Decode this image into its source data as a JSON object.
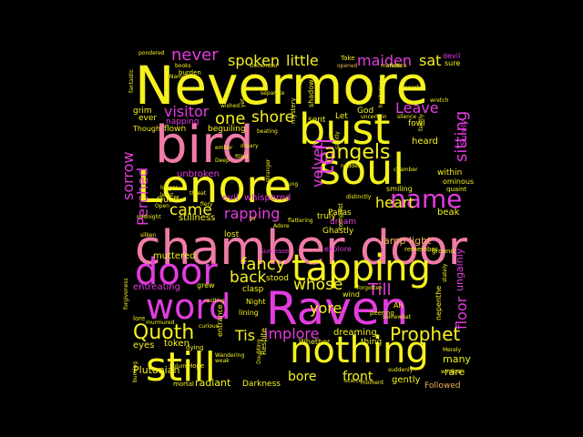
{
  "colors": {
    "background": "#000000",
    "yellow": "#f5f21e",
    "pink": "#f07ba8",
    "magenta": "#e43ce0",
    "orange": "#f4b255",
    "light": "#f8c878"
  },
  "words": [
    {
      "text": "Nevermore",
      "color": "yellow",
      "weight": 1.0
    },
    {
      "text": "bird",
      "color": "pink",
      "weight": 0.84
    },
    {
      "text": "bust",
      "color": "yellow",
      "weight": 0.76
    },
    {
      "text": "Lenore",
      "color": "yellow",
      "weight": 0.74
    },
    {
      "text": "soul",
      "color": "yellow",
      "weight": 0.66
    },
    {
      "text": "chamber door",
      "color": "pink",
      "weight": 0.8
    },
    {
      "text": "tapping",
      "color": "yellow",
      "weight": 0.64
    },
    {
      "text": "door",
      "color": "magenta",
      "weight": 0.62
    },
    {
      "text": "word",
      "color": "magenta",
      "weight": 0.6
    },
    {
      "text": "Raven",
      "color": "magenta",
      "weight": 0.9
    },
    {
      "text": "nothing",
      "color": "yellow",
      "weight": 0.62
    },
    {
      "text": "still",
      "color": "yellow",
      "weight": 0.62
    },
    {
      "text": "name",
      "color": "magenta",
      "weight": 0.5
    },
    {
      "text": "tell",
      "color": "magenta",
      "weight": 0.48
    },
    {
      "text": "angels",
      "color": "yellow",
      "weight": 0.36
    },
    {
      "text": "Quoth",
      "color": "yellow",
      "weight": 0.34
    },
    {
      "text": "fancy",
      "color": "yellow",
      "weight": 0.3
    },
    {
      "text": "Prophet",
      "color": "yellow",
      "weight": 0.3
    },
    {
      "text": "one",
      "color": "yellow",
      "weight": 0.3
    },
    {
      "text": "shore",
      "color": "yellow",
      "weight": 0.26
    },
    {
      "text": "never",
      "color": "magenta",
      "weight": 0.24
    },
    {
      "text": "spoken",
      "color": "yellow",
      "weight": 0.24
    },
    {
      "text": "little",
      "color": "yellow",
      "weight": 0.24
    },
    {
      "text": "maiden",
      "color": "magenta",
      "weight": 0.24
    },
    {
      "text": "sat",
      "color": "yellow",
      "weight": 0.22
    },
    {
      "text": "Leave",
      "color": "magenta",
      "weight": 0.22
    },
    {
      "text": "visitor",
      "color": "magenta",
      "weight": 0.22
    },
    {
      "text": "sitting",
      "color": "magenta",
      "weight": 0.22
    },
    {
      "text": "heart",
      "color": "yellow",
      "weight": 0.22
    },
    {
      "text": "velvet",
      "color": "magenta",
      "weight": 0.22
    },
    {
      "text": "sorrow",
      "color": "magenta",
      "weight": 0.2
    },
    {
      "text": "Perched",
      "color": "magenta",
      "weight": 0.2
    },
    {
      "text": "came",
      "color": "yellow",
      "weight": 0.22
    },
    {
      "text": "rapping",
      "color": "magenta",
      "weight": 0.2
    },
    {
      "text": "back",
      "color": "yellow",
      "weight": 0.22
    },
    {
      "text": "whose",
      "color": "yellow",
      "weight": 0.2
    },
    {
      "text": "Till",
      "color": "magenta",
      "weight": 0.22
    },
    {
      "text": "yore",
      "color": "yellow",
      "weight": 0.2
    },
    {
      "text": "floor",
      "color": "magenta",
      "weight": 0.2
    },
    {
      "text": "implore",
      "color": "magenta",
      "weight": 0.2
    },
    {
      "text": "Tis",
      "color": "yellow",
      "weight": 0.2
    },
    {
      "text": "bore",
      "color": "yellow",
      "weight": 0.18
    },
    {
      "text": "front",
      "color": "yellow",
      "weight": 0.18
    },
    {
      "text": "lamp light",
      "color": "orange",
      "weight": 0.14
    },
    {
      "text": "ungainly",
      "color": "magenta",
      "weight": 0.12
    },
    {
      "text": "many",
      "color": "yellow",
      "weight": 0.12
    },
    {
      "text": "rare",
      "color": "yellow",
      "weight": 0.12
    },
    {
      "text": "gently",
      "color": "yellow",
      "weight": 0.12
    },
    {
      "text": "Followed",
      "color": "orange",
      "weight": 0.1
    },
    {
      "text": "Plutonian",
      "color": "yellow",
      "weight": 0.12
    },
    {
      "text": "radiant",
      "color": "yellow",
      "weight": 0.12
    },
    {
      "text": "Darkness",
      "color": "yellow",
      "weight": 0.1
    },
    {
      "text": "entreating",
      "color": "magenta",
      "weight": 0.12
    },
    {
      "text": "muttered",
      "color": "yellow",
      "weight": 0.12
    },
    {
      "text": "stillness",
      "color": "yellow",
      "weight": 0.12
    },
    {
      "text": "whispered",
      "color": "magenta",
      "weight": 0.12
    },
    {
      "text": "unbroken",
      "color": "magenta",
      "weight": 0.12
    },
    {
      "text": "evil",
      "color": "magenta",
      "weight": 0.12
    },
    {
      "text": "dreaming",
      "color": "yellow",
      "weight": 0.12
    },
    {
      "text": "beak",
      "color": "yellow",
      "weight": 0.12
    },
    {
      "text": "within",
      "color": "yellow",
      "weight": 0.1
    },
    {
      "text": "ominous",
      "color": "yellow",
      "weight": 0.1
    },
    {
      "text": "smiling",
      "color": "yellow",
      "weight": 0.1
    },
    {
      "text": "heard",
      "color": "yellow",
      "weight": 0.12
    },
    {
      "text": "stood",
      "color": "yellow",
      "weight": 0.1
    },
    {
      "text": "clasp",
      "color": "yellow",
      "weight": 0.1
    },
    {
      "text": "Night",
      "color": "yellow",
      "weight": 0.1
    },
    {
      "text": "thing",
      "color": "yellow",
      "weight": 0.1
    },
    {
      "text": "token",
      "color": "yellow",
      "weight": 0.12
    },
    {
      "text": "eyes",
      "color": "yellow",
      "weight": 0.12
    },
    {
      "text": "grim",
      "color": "yellow",
      "weight": 0.1
    },
    {
      "text": "ever",
      "color": "yellow",
      "weight": 0.1
    },
    {
      "text": "flown",
      "color": "yellow",
      "weight": 0.1
    },
    {
      "text": "napping",
      "color": "magenta",
      "weight": 0.1
    },
    {
      "text": "beguiling",
      "color": "yellow",
      "weight": 0.1
    },
    {
      "text": "sent",
      "color": "yellow",
      "weight": 0.1
    },
    {
      "text": "Let",
      "color": "yellow",
      "weight": 0.1
    },
    {
      "text": "God",
      "color": "yellow",
      "weight": 0.1
    },
    {
      "text": "fowl",
      "color": "yellow",
      "weight": 0.1
    },
    {
      "text": "Surely",
      "color": "magenta",
      "weight": 0.1
    },
    {
      "text": "Ghastly",
      "color": "yellow",
      "weight": 0.09
    },
    {
      "text": "dream",
      "color": "magenta",
      "weight": 0.09
    },
    {
      "text": "Pallas",
      "color": "yellow",
      "weight": 0.09
    },
    {
      "text": "lost",
      "color": "yellow",
      "weight": 0.1
    },
    {
      "text": "truly",
      "color": "yellow",
      "weight": 0.09
    },
    {
      "text": "explore",
      "color": "magenta",
      "weight": 0.09
    },
    {
      "text": "nepenthe",
      "color": "yellow",
      "weight": 0.08
    },
    {
      "text": "Respite",
      "color": "yellow",
      "weight": 0.08
    },
    {
      "text": "Whether",
      "color": "yellow",
      "weight": 0.08
    },
    {
      "text": "wind",
      "color": "yellow",
      "weight": 0.08
    },
    {
      "text": "Quaff",
      "color": "yellow",
      "weight": 0.09
    },
    {
      "text": "Though",
      "color": "yellow",
      "weight": 0.08
    },
    {
      "text": "surcease",
      "color": "magenta",
      "weight": 0.07
    },
    {
      "text": "remember",
      "color": "yellow",
      "weight": 0.07
    },
    {
      "text": "ground",
      "color": "yellow",
      "weight": 0.07
    },
    {
      "text": "peering",
      "color": "yellow",
      "weight": 0.07
    },
    {
      "text": "Hope",
      "color": "yellow",
      "weight": 0.07
    },
    {
      "text": "lore",
      "color": "yellow",
      "weight": 0.07
    },
    {
      "text": "dying",
      "color": "yellow",
      "weight": 0.07
    },
    {
      "text": "mortal",
      "color": "yellow",
      "weight": 0.07
    },
    {
      "text": "quaint",
      "color": "yellow",
      "weight": 0.07
    },
    {
      "text": "Take",
      "color": "yellow",
      "weight": 0.07
    },
    {
      "text": "devil",
      "color": "magenta",
      "weight": 0.07
    },
    {
      "text": "sure",
      "color": "yellow",
      "weight": 0.07
    },
    {
      "text": "burden",
      "color": "yellow",
      "weight": 0.07
    },
    {
      "text": "pondered",
      "color": "yellow",
      "weight": 0.06
    },
    {
      "text": "books",
      "color": "yellow",
      "weight": 0.06
    },
    {
      "text": "December",
      "color": "yellow",
      "weight": 0.06
    },
    {
      "text": "opened",
      "color": "orange",
      "weight": 0.06
    },
    {
      "text": "marrow",
      "color": "yellow",
      "weight": 0.06
    },
    {
      "text": "lattice",
      "color": "yellow",
      "weight": 0.06
    },
    {
      "text": "nearly",
      "color": "yellow",
      "weight": 0.06
    },
    {
      "text": "wished",
      "color": "yellow",
      "weight": 0.06
    },
    {
      "text": "separate",
      "color": "yellow",
      "weight": 0.06
    },
    {
      "text": "hesitating",
      "color": "yellow",
      "weight": 0.06
    },
    {
      "text": "uncertain",
      "color": "yellow",
      "weight": 0.06
    },
    {
      "text": "silence",
      "color": "yellow",
      "weight": 0.06
    },
    {
      "text": "fantastic",
      "color": "yellow",
      "weight": 0.06
    },
    {
      "text": "shadow",
      "color": "yellow",
      "weight": 0.08
    },
    {
      "text": "mystery",
      "color": "yellow",
      "weight": 0.07
    },
    {
      "text": "beating",
      "color": "yellow",
      "weight": 0.06
    },
    {
      "text": "dreary",
      "color": "yellow",
      "weight": 0.06
    },
    {
      "text": "Deep",
      "color": "yellow",
      "weight": 0.06
    },
    {
      "text": "filled",
      "color": "yellow",
      "weight": 0.06
    },
    {
      "text": "ember",
      "color": "yellow",
      "weight": 0.06
    },
    {
      "text": "nodded",
      "color": "yellow",
      "weight": 0.06
    },
    {
      "text": "distinctly",
      "color": "yellow",
      "weight": 0.06
    },
    {
      "text": "tempest",
      "color": "yellow",
      "weight": 0.07
    },
    {
      "text": "stranger",
      "color": "yellow",
      "weight": 0.06
    },
    {
      "text": "flung",
      "color": "yellow",
      "weight": 0.06
    },
    {
      "text": "threat",
      "color": "yellow",
      "weight": 0.06
    },
    {
      "text": "longer",
      "color": "yellow",
      "weight": 0.06
    },
    {
      "text": "least",
      "color": "yellow",
      "weight": 0.06
    },
    {
      "text": "Open",
      "color": "yellow",
      "weight": 0.06
    },
    {
      "text": "midnight",
      "color": "yellow",
      "weight": 0.06
    },
    {
      "text": "silken",
      "color": "yellow",
      "weight": 0.06
    },
    {
      "text": "rustling",
      "color": "yellow",
      "weight": 0.06
    },
    {
      "text": "grew",
      "color": "yellow",
      "weight": 0.07
    },
    {
      "text": "lining",
      "color": "yellow",
      "weight": 0.07
    },
    {
      "text": "entrance",
      "color": "yellow",
      "weight": 0.07
    },
    {
      "text": "murmured",
      "color": "yellow",
      "weight": 0.06
    },
    {
      "text": "volume",
      "color": "yellow",
      "weight": 0.06
    },
    {
      "text": "weak",
      "color": "yellow",
      "weight": 0.06
    },
    {
      "text": "Wandering",
      "color": "yellow",
      "weight": 0.06
    },
    {
      "text": "curious",
      "color": "yellow",
      "weight": 0.06
    },
    {
      "text": "forgotten",
      "color": "yellow",
      "weight": 0.06
    },
    {
      "text": "somewhat",
      "color": "yellow",
      "weight": 0.06
    },
    {
      "text": "suddenly",
      "color": "yellow",
      "weight": 0.06
    },
    {
      "text": "window",
      "color": "yellow",
      "weight": 0.06
    },
    {
      "text": "Merely",
      "color": "yellow",
      "weight": 0.06
    },
    {
      "text": "stately",
      "color": "yellow",
      "weight": 0.06
    },
    {
      "text": "scarce",
      "color": "yellow",
      "weight": 0.06
    },
    {
      "text": "moment",
      "color": "yellow",
      "weight": 0.06
    },
    {
      "text": "burning",
      "color": "yellow",
      "weight": 0.06
    },
    {
      "text": "forgiveness",
      "color": "yellow",
      "weight": 0.06
    },
    {
      "text": "Doubting",
      "color": "yellow",
      "weight": 0.06
    },
    {
      "text": "Ah",
      "color": "yellow",
      "weight": 0.07
    },
    {
      "text": "Nameless",
      "color": "yellow",
      "weight": 0.06
    },
    {
      "text": "yet",
      "color": "yellow",
      "weight": 0.06
    },
    {
      "text": "bit",
      "color": "yellow",
      "weight": 0.06
    },
    {
      "text": "saintly",
      "color": "yellow",
      "weight": 0.06
    },
    {
      "text": "chamber",
      "color": "yellow",
      "weight": 0.06
    },
    {
      "text": "faintly",
      "color": "yellow",
      "weight": 0.06
    },
    {
      "text": "wretch",
      "color": "yellow",
      "weight": 0.06
    },
    {
      "text": "fiery",
      "color": "yellow",
      "weight": 0.06
    },
    {
      "text": "Adore",
      "color": "yellow",
      "weight": 0.06
    },
    {
      "text": "sir",
      "color": "yellow",
      "weight": 0.06
    },
    {
      "text": "flattering",
      "color": "yellow",
      "weight": 0.06
    }
  ]
}
